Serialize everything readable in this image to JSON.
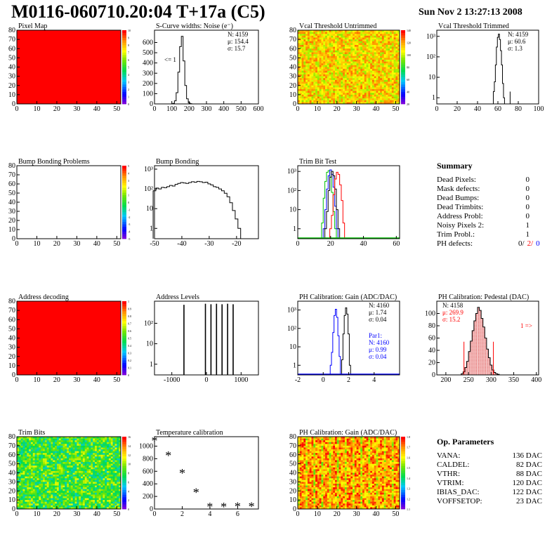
{
  "header": {
    "title": "M0116-060710.20:04 T+17a (C5)",
    "date": "Sun Nov  2 13:27:13 2008"
  },
  "colors": {
    "frame": "#000000",
    "red": "#ff0000",
    "blue": "#0000ff",
    "green": "#00c000",
    "hatch": "#d02020"
  },
  "chart_data": [
    {
      "id": "pixel_map",
      "type": "heatmap",
      "title": "Pixel Map",
      "x_ticks": [
        "0",
        "10",
        "20",
        "30",
        "40",
        "50"
      ],
      "y_ticks": [
        "0",
        "10",
        "20",
        "30",
        "40",
        "50",
        "60",
        "70",
        "80"
      ],
      "xlim": [
        0,
        52
      ],
      "ylim": [
        0,
        80
      ],
      "uniform_color": "#ff0000",
      "zlim": [
        0,
        10
      ],
      "palette_ticks": [
        "0",
        "1",
        "2",
        "3",
        "4",
        "5",
        "6",
        "7",
        "8",
        "9",
        "10"
      ]
    },
    {
      "id": "scurve",
      "type": "histogram",
      "title": "S-Curve widths: Noise (e⁻)",
      "x_ticks": [
        "0",
        "100",
        "200",
        "300",
        "400",
        "500",
        "600"
      ],
      "y_ticks": [
        "0",
        "100",
        "200",
        "300",
        "400",
        "500",
        "600"
      ],
      "xlim": [
        0,
        600
      ],
      "ylim": [
        0,
        720
      ],
      "series": [
        {
          "color": "#000000",
          "x": [
            100,
            110,
            120,
            130,
            140,
            150,
            160,
            170,
            180,
            190,
            200,
            210,
            220
          ],
          "values": [
            0,
            5,
            30,
            110,
            310,
            560,
            660,
            420,
            180,
            50,
            12,
            3,
            0
          ]
        }
      ],
      "stats": [
        "N: 4159",
        "μ: 154.4",
        "σ: 15.7"
      ],
      "annotation": "<= 1"
    },
    {
      "id": "vcal_untrimmed",
      "type": "heatmap",
      "title": "Vcal Threshold Untrimmed",
      "x_ticks": [
        "0",
        "10",
        "20",
        "30",
        "40",
        "50"
      ],
      "y_ticks": [
        "0",
        "10",
        "20",
        "30",
        "40",
        "50",
        "60",
        "70",
        "80"
      ],
      "xlim": [
        0,
        52
      ],
      "ylim": [
        0,
        80
      ],
      "zlim": [
        0,
        140
      ],
      "palette_ticks": [
        "20",
        "40",
        "60",
        "80",
        "100",
        "120",
        "140"
      ]
    },
    {
      "id": "vcal_trimmed",
      "type": "histogram",
      "title": "Vcal Threshold Trimmed",
      "log_y": true,
      "x_ticks": [
        "0",
        "20",
        "40",
        "60",
        "80",
        "100"
      ],
      "y_ticks": [
        "1",
        "10",
        "10²",
        "10³"
      ],
      "xlim": [
        0,
        100
      ],
      "ylim_log": [
        0.5,
        2000
      ],
      "series": [
        {
          "color": "#000000",
          "x": [
            56,
            57,
            58,
            59,
            60,
            61,
            62,
            63,
            64,
            65,
            66
          ],
          "values": [
            2,
            6,
            40,
            300,
            900,
            1300,
            700,
            200,
            40,
            5,
            1
          ]
        }
      ],
      "extra_bins": [
        {
          "x": 72,
          "value": 2
        }
      ],
      "stats": [
        "N: 4159",
        "μ: 60.6",
        "σ:  1.3"
      ]
    },
    {
      "id": "bump_problems",
      "type": "heatmap",
      "title": "Bump Bonding Problems",
      "x_ticks": [
        "0",
        "10",
        "20",
        "30",
        "40",
        "50"
      ],
      "y_ticks": [
        "0",
        "10",
        "20",
        "30",
        "40",
        "50",
        "60",
        "70",
        "80"
      ],
      "xlim": [
        0,
        52
      ],
      "ylim": [
        0,
        80
      ],
      "uniform_color": "#ffffff",
      "zlim": [
        -5,
        5
      ],
      "palette_ticks": [
        "-5",
        "-4",
        "-3",
        "-2",
        "-1",
        "0",
        "1",
        "2",
        "3",
        "4",
        "5"
      ]
    },
    {
      "id": "bump_bonding",
      "type": "histogram",
      "title": "Bump Bonding",
      "log_y": true,
      "x_ticks": [
        "-50",
        "-40",
        "-30",
        "-20"
      ],
      "y_ticks": [
        "1",
        "10",
        "10²",
        "10³"
      ],
      "xlim": [
        -50,
        -12
      ],
      "ylim_log": [
        0.3,
        1500
      ],
      "series": [
        {
          "color": "#000000",
          "x": [
            -50,
            -49,
            -48,
            -47,
            -46,
            -45,
            -44,
            -43,
            -42,
            -41,
            -40,
            -39,
            -38,
            -37,
            -36,
            -35,
            -34,
            -33,
            -32,
            -31,
            -30,
            -29,
            -28,
            -27,
            -26,
            -25,
            -24,
            -23,
            -22,
            -21,
            -20,
            -19,
            -18
          ],
          "values": [
            80,
            110,
            100,
            120,
            115,
            130,
            150,
            140,
            170,
            190,
            210,
            200,
            190,
            210,
            230,
            220,
            240,
            230,
            210,
            220,
            180,
            160,
            130,
            120,
            100,
            80,
            60,
            40,
            20,
            8,
            3,
            1,
            0.3
          ]
        }
      ]
    },
    {
      "id": "trim_bit_test",
      "type": "histogram",
      "title": "Trim Bit Test",
      "log_y": true,
      "x_ticks": [
        "0",
        "20",
        "40",
        "60"
      ],
      "y_ticks": [
        "1",
        "10",
        "10²",
        "10³"
      ],
      "xlim": [
        0,
        62
      ],
      "ylim_log": [
        0.3,
        2000
      ],
      "series": [
        {
          "color": "#00c000",
          "x": [
            15,
            16,
            17,
            18,
            19,
            20,
            21,
            22,
            23
          ],
          "values": [
            2,
            40,
            300,
            900,
            1100,
            500,
            80,
            8,
            1
          ]
        },
        {
          "color": "#0000ff",
          "x": [
            16,
            17,
            18,
            19,
            20,
            21,
            22,
            23,
            24
          ],
          "values": [
            1,
            10,
            120,
            600,
            1200,
            700,
            150,
            15,
            1
          ]
        },
        {
          "color": "#000000",
          "x": [
            17,
            18,
            19,
            20,
            21,
            22,
            23,
            24,
            25
          ],
          "values": [
            1,
            8,
            100,
            500,
            1000,
            600,
            120,
            10,
            1
          ]
        },
        {
          "color": "#ff0000",
          "x": [
            20,
            21,
            22,
            23,
            24,
            25,
            26,
            27,
            28
          ],
          "values": [
            1,
            5,
            60,
            400,
            900,
            700,
            200,
            30,
            2
          ]
        }
      ]
    },
    {
      "id": "address_decoding",
      "type": "heatmap",
      "title": "Address decoding",
      "x_ticks": [
        "0",
        "10",
        "20",
        "30",
        "40",
        "50"
      ],
      "y_ticks": [
        "0",
        "10",
        "20",
        "30",
        "40",
        "50",
        "60",
        "70",
        "80"
      ],
      "xlim": [
        0,
        52
      ],
      "ylim": [
        0,
        80
      ],
      "uniform_color": "#ff0000",
      "zlim": [
        0,
        1
      ],
      "palette_ticks": [
        "0",
        "0.1",
        "0.2",
        "0.3",
        "0.4",
        "0.5",
        "0.6",
        "0.7",
        "0.8",
        "0.9",
        "1"
      ]
    },
    {
      "id": "address_levels",
      "type": "histogram",
      "title": "Address Levels",
      "log_y": true,
      "x_ticks": [
        "-1000",
        "0",
        "1000"
      ],
      "y_ticks": [
        "1",
        "10",
        "10²"
      ],
      "xlim": [
        -1500,
        1500
      ],
      "ylim_log": [
        0.3,
        1200
      ],
      "spikes": [
        {
          "x": -650,
          "value": 800
        },
        {
          "x": -30,
          "value": 900
        },
        {
          "x": 130,
          "value": 850
        },
        {
          "x": 290,
          "value": 900
        },
        {
          "x": 450,
          "value": 850
        },
        {
          "x": 610,
          "value": 900
        },
        {
          "x": 770,
          "value": 850
        }
      ]
    },
    {
      "id": "ph_gain",
      "type": "histogram",
      "title": "PH Calibration: Gain (ADC/DAC)",
      "log_y": true,
      "x_ticks": [
        "-2",
        "0",
        "2",
        "4"
      ],
      "y_ticks": [
        "1",
        "10",
        "10²",
        "10³"
      ],
      "xlim": [
        -2,
        6
      ],
      "ylim_log": [
        0.3,
        3000
      ],
      "series": [
        {
          "color": "#0000ff",
          "x": [
            0.6,
            0.7,
            0.8,
            0.9,
            1.0,
            1.1,
            1.2,
            1.3,
            1.4
          ],
          "values": [
            1,
            5,
            60,
            500,
            1100,
            400,
            40,
            3,
            0.3
          ]
        },
        {
          "color": "#000000",
          "x": [
            1.5,
            1.6,
            1.7,
            1.8,
            1.9,
            2.0,
            2.1
          ],
          "values": [
            2,
            50,
            500,
            1300,
            600,
            50,
            1
          ]
        }
      ],
      "stats": [
        "N: 4160",
        "μ: 1.74",
        "σ: 0.04"
      ],
      "stats2": [
        "Par1:",
        "N: 4160",
        "μ: 0.99",
        "σ: 0.04"
      ]
    },
    {
      "id": "ph_pedestal",
      "type": "histogram",
      "title": "PH Calibration: Pedestal (DAC)",
      "x_ticks": [
        "200",
        "250",
        "300",
        "350",
        "400"
      ],
      "y_ticks": [
        "0",
        "20",
        "40",
        "60",
        "80",
        "100"
      ],
      "xlim": [
        180,
        405
      ],
      "ylim": [
        0,
        120
      ],
      "series": [
        {
          "color": "#000000",
          "x": [
            236,
            240,
            244,
            248,
            252,
            256,
            260,
            264,
            268,
            272,
            276,
            280,
            284,
            288,
            292,
            296,
            300,
            304,
            308,
            312,
            316
          ],
          "values": [
            2,
            5,
            12,
            22,
            38,
            55,
            72,
            88,
            100,
            110,
            105,
            92,
            78,
            60,
            42,
            28,
            16,
            8,
            4,
            2,
            1
          ]
        }
      ],
      "stats": [
        "N: 4158",
        "μ: 269.9",
        "σ: 15.2"
      ],
      "fit_lines": [
        240,
        305
      ],
      "annotation": "1 =>"
    },
    {
      "id": "trim_bits",
      "type": "heatmap",
      "title": "Trim Bits",
      "x_ticks": [
        "0",
        "10",
        "20",
        "30",
        "40",
        "50"
      ],
      "y_ticks": [
        "0",
        "10",
        "20",
        "30",
        "40",
        "50",
        "60",
        "70",
        "80"
      ],
      "xlim": [
        0,
        52
      ],
      "ylim": [
        0,
        80
      ],
      "zlim": [
        0,
        16
      ],
      "palette_ticks": [
        "0",
        "2",
        "4",
        "6",
        "8",
        "10",
        "12",
        "14",
        "16"
      ]
    },
    {
      "id": "temperature_calibration",
      "type": "scatter",
      "title": "Temperature calibration",
      "x_ticks": [
        "0",
        "2",
        "4",
        "6"
      ],
      "y_ticks": [
        "0",
        "200",
        "400",
        "600",
        "800",
        "1000"
      ],
      "xlim": [
        0,
        7.5
      ],
      "ylim": [
        0,
        1150
      ],
      "x": [
        0,
        1,
        2,
        3,
        4,
        5,
        6,
        7
      ],
      "values": [
        1070,
        840,
        560,
        250,
        25,
        25,
        30,
        30
      ]
    },
    {
      "id": "ph_gain_map",
      "type": "heatmap",
      "title": "PH Calibration: Gain (ADC/DAC)",
      "x_ticks": [
        "0",
        "10",
        "20",
        "30",
        "40",
        "50"
      ],
      "y_ticks": [
        "0",
        "10",
        "20",
        "30",
        "40",
        "50",
        "60",
        "70",
        "80"
      ],
      "xlim": [
        0,
        52
      ],
      "ylim": [
        0,
        80
      ],
      "zlim": [
        1,
        1.8
      ],
      "palette_ticks": [
        "1.1",
        "1.2",
        "1.3",
        "1.4",
        "1.5",
        "1.6",
        "1.7",
        "1.8"
      ]
    }
  ],
  "summary": {
    "title": "Summary",
    "rows": [
      {
        "label": "Dead Pixels:",
        "value": "0"
      },
      {
        "label": "Mask defects:",
        "value": "0"
      },
      {
        "label": "Dead Bumps:",
        "value": "0"
      },
      {
        "label": "Dead Trimbits:",
        "value": "0"
      },
      {
        "label": "Address Probl:",
        "value": "0"
      },
      {
        "label": "Noisy Pixels 2:",
        "value": "1"
      },
      {
        "label": "Trim Probl.:",
        "value": "1"
      }
    ],
    "ph_label": "PH defects:",
    "ph_values": [
      {
        "value": "0/",
        "color": "#000000"
      },
      {
        "value": "2/",
        "color": "#ff0000"
      },
      {
        "value": "0",
        "color": "#0000ff"
      }
    ]
  },
  "op_parameters": {
    "title": "Op. Parameters",
    "rows": [
      {
        "label": "VANA:",
        "value": "136 DAC"
      },
      {
        "label": "CALDEL:",
        "value": "82 DAC"
      },
      {
        "label": "VTHR:",
        "value": "88 DAC"
      },
      {
        "label": "VTRIM:",
        "value": "120 DAC"
      },
      {
        "label": "IBIAS_DAC:",
        "value": "122 DAC"
      },
      {
        "label": "VOFFSETOP:",
        "value": "23 DAC"
      }
    ]
  }
}
